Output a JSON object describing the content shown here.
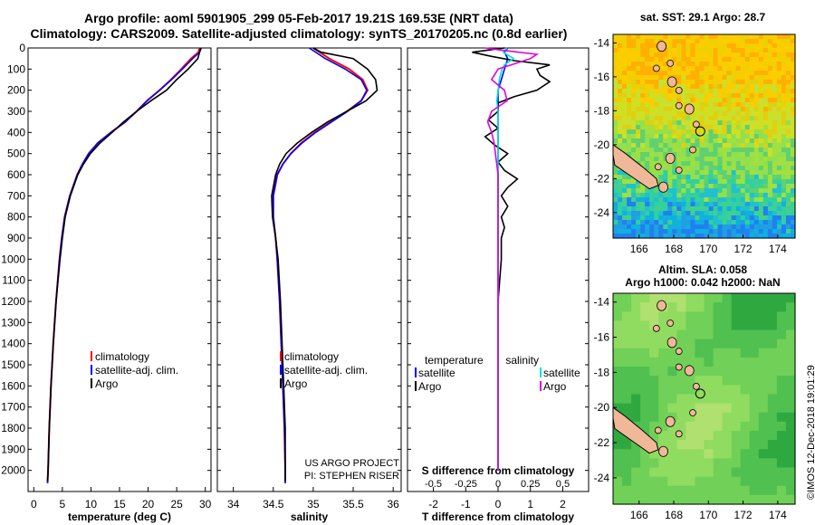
{
  "header": {
    "title_line1": "Argo profile: aoml 5901905_299 05-Feb-2017 19.21S 169.53E (NRT data)",
    "title_line2": "Climatology: CARS2009. Satellite-adjusted climatology: synTS_20170205.nc (0.8d earlier)"
  },
  "colors": {
    "climatology": "#ff0000",
    "satellite_adj": "#0000ff",
    "argo": "#000000",
    "satellite_salinity": "#00e0e0",
    "argo_salinity": "#e000e0"
  },
  "chart_data": [
    {
      "type": "line",
      "xlabel": "temperature (deg C)",
      "ylabel": "",
      "xlim": [
        -1,
        31
      ],
      "ylim": [
        2100,
        0
      ],
      "x_ticks": [
        "0",
        "5",
        "10",
        "15",
        "20",
        "25",
        "30"
      ],
      "y_ticks": [
        "0",
        "100",
        "200",
        "300",
        "400",
        "500",
        "600",
        "700",
        "800",
        "900",
        "1000",
        "1100",
        "1200",
        "1300",
        "1400",
        "1500",
        "1600",
        "1700",
        "1800",
        "1900",
        "2000"
      ],
      "legend": [
        "climatology",
        "satellite-adj. clim.",
        "Argo"
      ],
      "series": [
        {
          "name": "climatology",
          "y": [
            0,
            20,
            50,
            100,
            150,
            200,
            250,
            300,
            350,
            400,
            450,
            500,
            550,
            600,
            700,
            800,
            900,
            1000,
            1200,
            1400,
            1600,
            1800,
            2000,
            2060
          ],
          "values": [
            29.0,
            28.8,
            27.5,
            25.8,
            24.0,
            22.0,
            19.8,
            18.0,
            16.0,
            13.5,
            11.2,
            9.6,
            8.5,
            7.6,
            6.3,
            5.4,
            4.9,
            4.5,
            3.9,
            3.4,
            3.0,
            2.7,
            2.5,
            2.4
          ]
        },
        {
          "name": "satellite-adj. clim.",
          "y": [
            0,
            20,
            50,
            100,
            150,
            200,
            250,
            300,
            350,
            400,
            450,
            500,
            550,
            600,
            700,
            800,
            900,
            1000,
            1200,
            1400,
            1600,
            1800,
            2000,
            2060
          ],
          "values": [
            29.3,
            29.0,
            27.8,
            26.0,
            24.1,
            22.0,
            19.8,
            18.0,
            16.0,
            13.5,
            11.2,
            9.6,
            8.5,
            7.6,
            6.3,
            5.4,
            4.9,
            4.5,
            3.9,
            3.4,
            3.0,
            2.7,
            2.5,
            2.4
          ]
        },
        {
          "name": "Argo",
          "y": [
            0,
            10,
            50,
            100,
            150,
            200,
            250,
            300,
            350,
            400,
            450,
            500,
            550,
            600,
            700,
            800,
            900,
            1000,
            1200,
            1400,
            1600,
            1800,
            2000,
            2050
          ],
          "values": [
            29.2,
            29.1,
            28.7,
            27.0,
            25.0,
            23.2,
            20.5,
            18.0,
            15.7,
            13.7,
            11.6,
            9.9,
            8.7,
            7.7,
            6.4,
            5.5,
            5.0,
            4.6,
            3.9,
            3.4,
            3.0,
            2.7,
            2.5,
            2.4
          ]
        }
      ]
    },
    {
      "type": "line",
      "xlabel": "salinity",
      "ylabel": "",
      "xlim": [
        33.8,
        36.1
      ],
      "ylim": [
        2100,
        0
      ],
      "x_ticks": [
        "34",
        "34.5",
        "35",
        "35.5",
        "36"
      ],
      "legend": [
        "climatology",
        "satellite-adj. clim.",
        "Argo"
      ],
      "annotations": [
        "US ARGO PROJECT",
        "PI: STEPHEN RISER"
      ],
      "series": [
        {
          "name": "climatology",
          "y": [
            0,
            50,
            100,
            150,
            200,
            250,
            300,
            350,
            400,
            450,
            500,
            550,
            600,
            700,
            800,
            900,
            1000,
            1200,
            1400,
            1600,
            1800,
            2000,
            2060
          ],
          "values": [
            35.0,
            35.2,
            35.45,
            35.62,
            35.68,
            35.6,
            35.42,
            35.22,
            35.02,
            34.85,
            34.72,
            34.62,
            34.55,
            34.5,
            34.5,
            34.53,
            34.55,
            34.58,
            34.6,
            34.62,
            34.64,
            34.65,
            34.65
          ]
        },
        {
          "name": "satellite-adj. clim.",
          "y": [
            0,
            50,
            100,
            150,
            200,
            250,
            300,
            350,
            400,
            450,
            500,
            550,
            600,
            700,
            800,
            900,
            1000,
            1200,
            1400,
            1600,
            1800,
            2000,
            2060
          ],
          "values": [
            34.95,
            35.15,
            35.4,
            35.6,
            35.67,
            35.6,
            35.43,
            35.23,
            35.03,
            34.86,
            34.72,
            34.62,
            34.55,
            34.5,
            34.5,
            34.53,
            34.55,
            34.58,
            34.6,
            34.62,
            34.64,
            34.65,
            34.65
          ]
        },
        {
          "name": "Argo",
          "y": [
            0,
            20,
            50,
            100,
            150,
            200,
            250,
            300,
            350,
            400,
            450,
            500,
            550,
            600,
            700,
            800,
            900,
            1000,
            1200,
            1400,
            1600,
            1800,
            2000,
            2050
          ],
          "values": [
            35.0,
            35.1,
            35.5,
            35.68,
            35.78,
            35.8,
            35.66,
            35.42,
            35.18,
            34.98,
            34.8,
            34.66,
            34.58,
            34.53,
            34.48,
            34.49,
            34.53,
            34.56,
            34.59,
            34.61,
            34.63,
            34.65,
            34.65,
            34.65
          ]
        }
      ]
    },
    {
      "type": "line",
      "xlabel": "T difference from climatology",
      "ylabel": "",
      "xlim": [
        -2.8,
        2.8
      ],
      "ylim": [
        2100,
        0
      ],
      "x_ticks": [
        "-2",
        "-1",
        "0",
        "1",
        "2"
      ],
      "x_ticks_top": [
        "-0.5",
        "-0.25",
        "0",
        "0.25",
        "0.5"
      ],
      "secondary_xlabel": "S difference from climatology",
      "legend_groups": [
        {
          "title": "temperature",
          "entries": [
            "satellite",
            "Argo"
          ]
        },
        {
          "title": "salinity",
          "entries": [
            "satellite",
            "Argo"
          ]
        }
      ],
      "series": [
        {
          "name": "temperature satellite",
          "y": [
            0,
            20,
            50,
            100,
            150,
            200,
            300,
            400,
            500,
            700,
            1000,
            1500,
            2000
          ],
          "values": [
            0.3,
            0.2,
            0.3,
            0.2,
            0.1,
            0.0,
            0.0,
            0.0,
            0.0,
            0.0,
            0.0,
            0.0,
            0.0
          ]
        },
        {
          "name": "temperature Argo",
          "y": [
            0,
            20,
            40,
            60,
            80,
            100,
            130,
            160,
            200,
            230,
            260,
            300,
            340,
            380,
            420,
            460,
            500,
            540,
            580,
            620,
            660,
            700,
            750,
            800,
            850,
            900,
            1000,
            1200,
            1500,
            1800,
            2000
          ],
          "values": [
            0.2,
            -0.8,
            -0.2,
            0.5,
            1.6,
            1.2,
            1.3,
            1.6,
            1.2,
            0.5,
            0.0,
            0.0,
            -0.3,
            0.0,
            -0.4,
            -0.1,
            0.3,
            0.0,
            0.2,
            0.6,
            0.3,
            0.1,
            0.3,
            0.1,
            0.2,
            0.1,
            0.1,
            0.0,
            0.0,
            0.0,
            0.0
          ]
        },
        {
          "name": "salinity satellite",
          "y": [
            0,
            20,
            50,
            80,
            100,
            150,
            200,
            250,
            300,
            400,
            500,
            700,
            1000,
            1500,
            2000
          ],
          "values": [
            0.07,
            0.04,
            0.12,
            0.05,
            0.03,
            0.01,
            0.0,
            -0.01,
            0.0,
            0.0,
            0.0,
            0.0,
            0.0,
            0.0,
            0.0
          ]
        },
        {
          "name": "salinity Argo",
          "y": [
            0,
            10,
            30,
            50,
            80,
            100,
            150,
            200,
            250,
            300,
            350,
            400,
            450,
            500,
            600,
            700,
            800,
            1000,
            1500,
            2000
          ],
          "values": [
            -0.1,
            0.02,
            0.3,
            0.25,
            0.1,
            0.0,
            -0.05,
            0.05,
            0.07,
            -0.05,
            -0.08,
            -0.05,
            -0.03,
            -0.02,
            0.0,
            0.0,
            0.0,
            0.0,
            0.0,
            0.0
          ]
        }
      ]
    }
  ],
  "maps": [
    {
      "title_line1": "sat. SST: 29.1 Argo: 28.7",
      "title_line2": "",
      "x_ticks": [
        "166",
        "168",
        "170",
        "172",
        "174"
      ],
      "y_ticks": [
        "-14",
        "-16",
        "-18",
        "-20",
        "-22",
        "-24"
      ],
      "xlim": [
        164.5,
        175
      ],
      "ylim": [
        -25.5,
        -13.5
      ],
      "profile_location": {
        "lon": 169.53,
        "lat": -19.21
      }
    },
    {
      "title_line1": "Altim. SLA: 0.058",
      "title_line2": "Argo h1000: 0.042 h2000: NaN",
      "x_ticks": [
        "166",
        "168",
        "170",
        "172",
        "174"
      ],
      "y_ticks": [
        "-14",
        "-16",
        "-18",
        "-20",
        "-22",
        "-24"
      ],
      "xlim": [
        164.5,
        175
      ],
      "ylim": [
        -25.5,
        -13.5
      ],
      "profile_location": {
        "lon": 169.53,
        "lat": -19.21
      }
    }
  ],
  "credit": "©IMOS 12-Dec-2018 19:01:29"
}
